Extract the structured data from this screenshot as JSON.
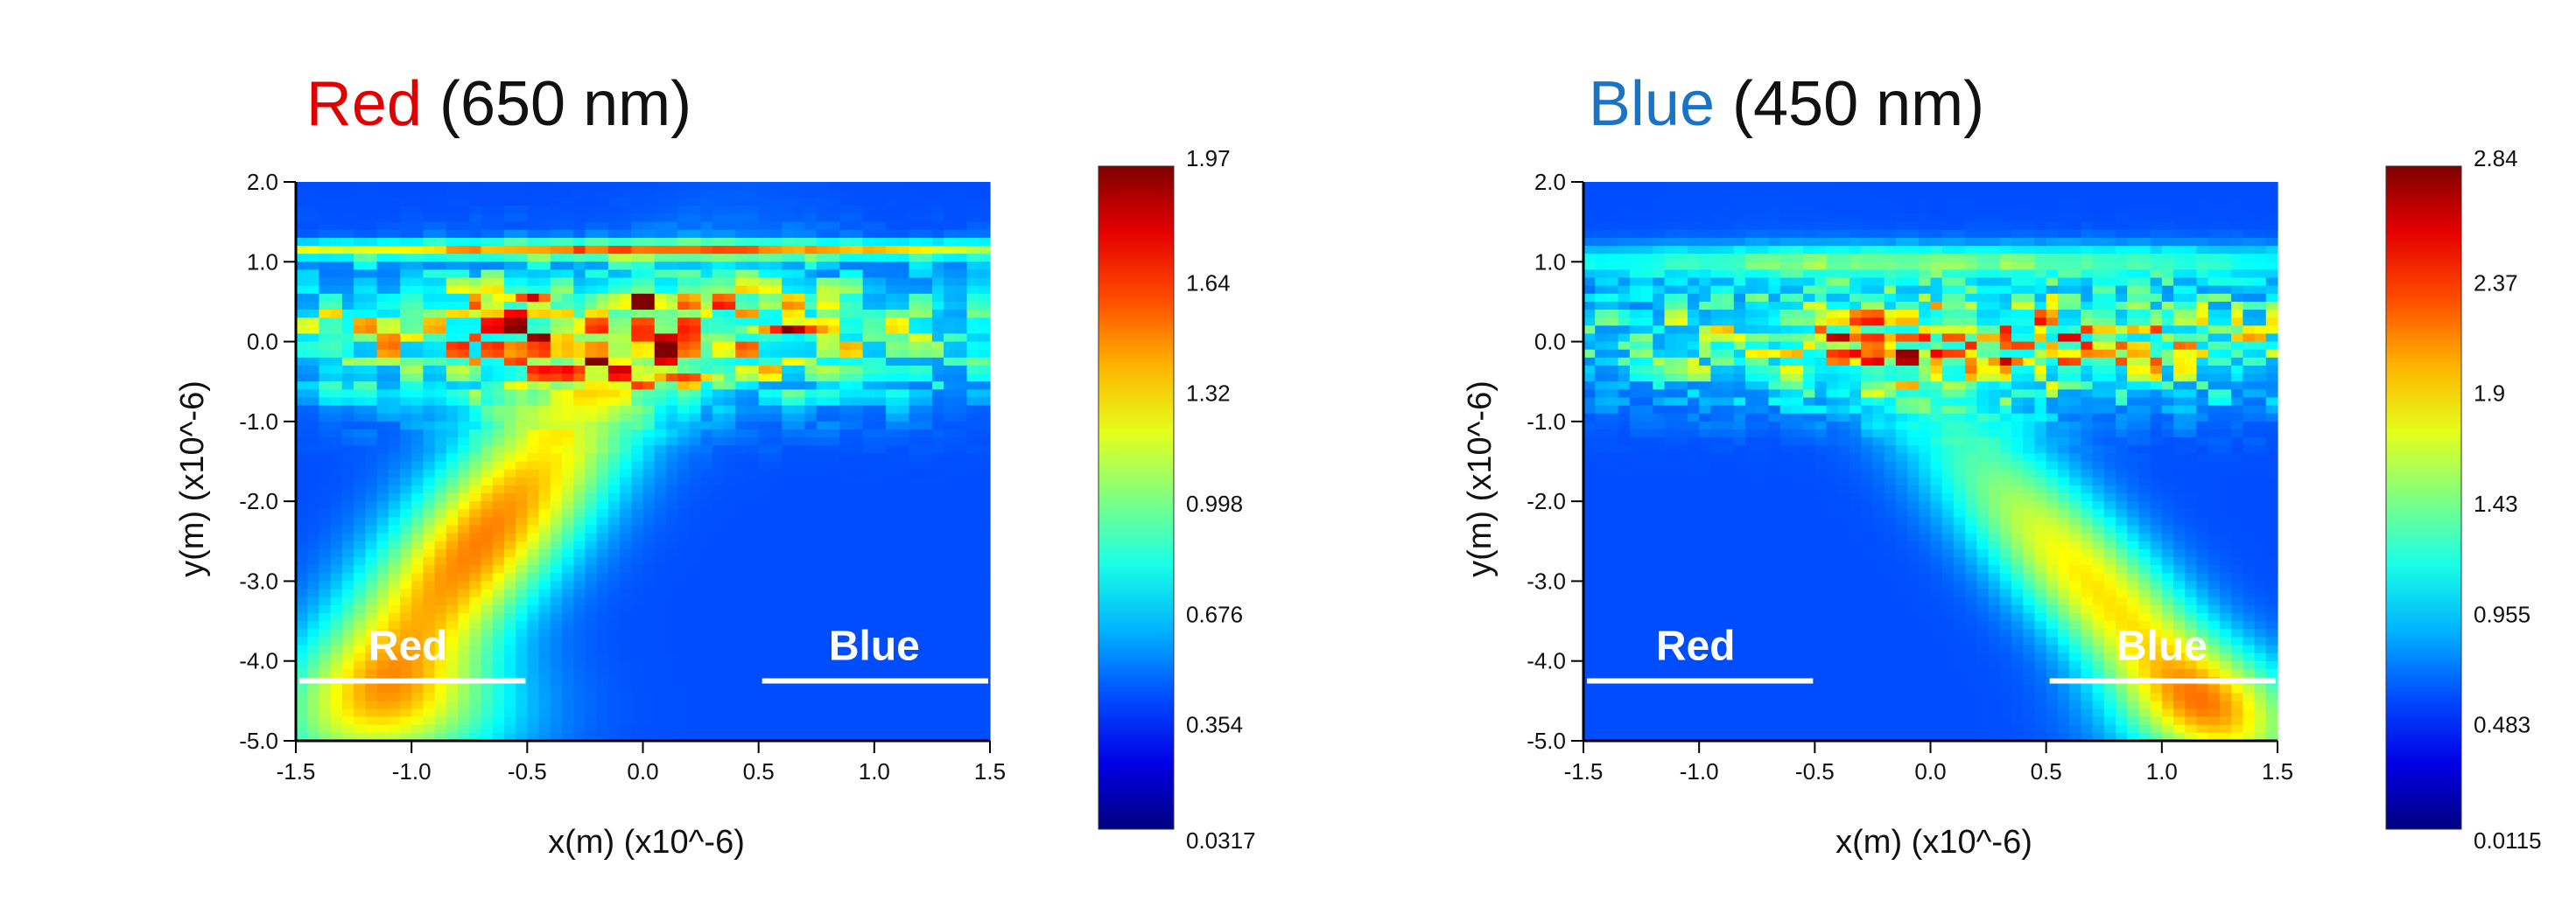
{
  "chart_data": [
    {
      "type": "heatmap",
      "title_color_word": "Red",
      "title_rest": " (650 nm)",
      "xlabel": "x(m) (x10^-6)",
      "ylabel": "y(m) (x10^-6)",
      "xlim": [
        -1.5,
        1.5
      ],
      "ylim": [
        -5.0,
        2.0
      ],
      "xticks": [
        "-1.5",
        "-1.0",
        "-0.5",
        "0.0",
        "0.5",
        "1.0",
        "1.5"
      ],
      "yticks": [
        "2.0",
        "1.0",
        "0.0",
        "-1.0",
        "-2.0",
        "-3.0",
        "-4.0",
        "-5.0"
      ],
      "colorbar": {
        "min": 0.0317,
        "max": 1.97,
        "ticks": [
          "1.97",
          "1.64",
          "1.32",
          "0.998",
          "0.676",
          "0.354",
          "0.0317"
        ]
      },
      "colormap": "jet",
      "annotations": [
        {
          "text": "Red",
          "x_range": [
            -1.5,
            -0.5
          ],
          "y": -4.25
        },
        {
          "text": "Blue",
          "x_range": [
            0.5,
            1.5
          ],
          "y": -4.25
        }
      ],
      "background_level": 0.2,
      "features": [
        {
          "kind": "band",
          "x": 0.0,
          "y": 1.15,
          "sx": 1.6,
          "sy": 0.07,
          "amp": 0.5
        },
        {
          "kind": "beam",
          "x0": -0.7,
          "y0": -2.5,
          "slope": 0.25,
          "sx": 0.28,
          "sy": 1.6,
          "amp": 0.55
        },
        {
          "kind": "beam",
          "x0": -1.0,
          "y0": -4.6,
          "slope": 0.0,
          "sx": 0.35,
          "sy": 0.6,
          "amp": 0.3
        },
        {
          "kind": "speckle",
          "x": -0.1,
          "y": 0.1,
          "sx": 1.35,
          "sy": 0.55,
          "amp": 0.55,
          "seed": 11,
          "fx": 11,
          "fy": 9
        },
        {
          "kind": "hot",
          "x": -0.5,
          "y": 0.55,
          "sx": 0.07,
          "sy": 0.04,
          "amp": 0.45
        },
        {
          "kind": "hot",
          "x": -0.05,
          "y": 0.5,
          "sx": 0.12,
          "sy": 0.04,
          "amp": 0.45
        },
        {
          "kind": "hot",
          "x": 0.6,
          "y": 0.15,
          "sx": 0.09,
          "sy": 0.04,
          "amp": 0.5
        },
        {
          "kind": "hot",
          "x": 0.2,
          "y": -0.45,
          "sx": 0.09,
          "sy": 0.04,
          "amp": 0.4
        }
      ]
    },
    {
      "type": "heatmap",
      "title_color_word": "Blue",
      "title_rest": " (450 nm)",
      "xlabel": "x(m) (x10^-6)",
      "ylabel": "y(m) (x10^-6)",
      "xlim": [
        -1.5,
        1.5
      ],
      "ylim": [
        -5.0,
        2.0
      ],
      "xticks": [
        "-1.5",
        "-1.0",
        "-0.5",
        "0.0",
        "0.5",
        "1.0",
        "1.5"
      ],
      "yticks": [
        "2.0",
        "1.0",
        "0.0",
        "-1.0",
        "-2.0",
        "-3.0",
        "-4.0",
        "-5.0"
      ],
      "colorbar": {
        "min": 0.0115,
        "max": 2.84,
        "ticks": [
          "2.84",
          "2.37",
          "1.9",
          "1.43",
          "0.955",
          "0.483",
          "0.0115"
        ]
      },
      "colormap": "jet",
      "annotations": [
        {
          "text": "Red",
          "x_range": [
            -1.5,
            -0.5
          ],
          "y": -4.25
        },
        {
          "text": "Blue",
          "x_range": [
            0.5,
            1.5
          ],
          "y": -4.25
        }
      ],
      "background_level": 0.2,
      "features": [
        {
          "kind": "band",
          "x": 0.0,
          "y": 1.0,
          "sx": 1.6,
          "sy": 0.15,
          "amp": 0.25
        },
        {
          "kind": "beam",
          "x0": 0.75,
          "y0": -3.2,
          "slope": -0.3,
          "sx": 0.25,
          "sy": 1.6,
          "amp": 0.45
        },
        {
          "kind": "beam",
          "x0": 1.2,
          "y0": -4.6,
          "slope": 0.0,
          "sx": 0.3,
          "sy": 0.5,
          "amp": 0.25
        },
        {
          "kind": "speckle",
          "x": 0.25,
          "y": 0.0,
          "sx": 1.25,
          "sy": 0.5,
          "amp": 0.55,
          "seed": 29,
          "fx": 14,
          "fy": 12
        },
        {
          "kind": "hot",
          "x": 0.35,
          "y": -0.25,
          "sx": 0.08,
          "sy": 0.04,
          "amp": 0.4
        },
        {
          "kind": "hot",
          "x": 0.75,
          "y": 0.15,
          "sx": 0.06,
          "sy": 0.04,
          "amp": 0.35
        },
        {
          "kind": "hot",
          "x": -0.1,
          "y": -0.2,
          "sx": 0.06,
          "sy": 0.04,
          "amp": 0.3
        }
      ]
    }
  ]
}
